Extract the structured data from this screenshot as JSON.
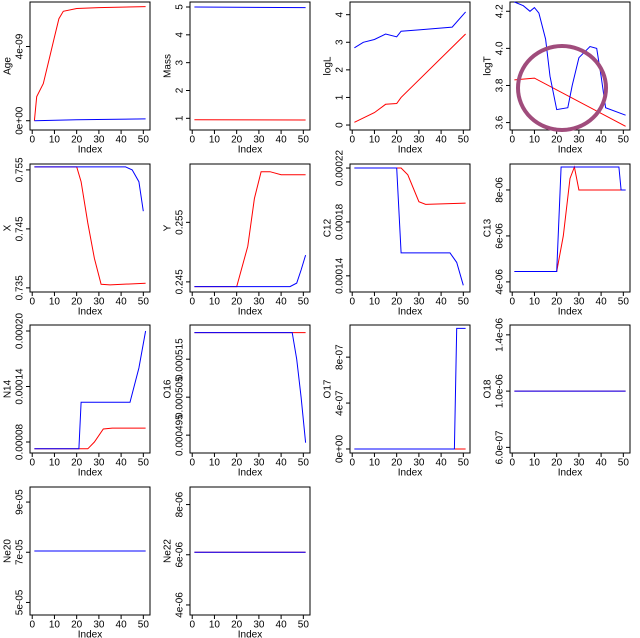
{
  "chart_data": [
    {
      "type": "line",
      "xlabel": "Index",
      "ylabel": "Age",
      "xlim": [
        -1,
        53
      ],
      "xticks": [
        0,
        10,
        20,
        30,
        40,
        50
      ],
      "ylim": [
        -5e-10,
        6.4e-09
      ],
      "yticks": [
        {
          "value": 0,
          "label": "0e+00"
        },
        {
          "value": 4e-09,
          "label": "4e-09"
        }
      ],
      "series": [
        {
          "color": "#ff0000",
          "x": [
            1,
            2,
            5,
            8,
            10,
            12,
            14,
            20,
            30,
            51
          ],
          "values": [
            0,
            1.3e-09,
            2e-09,
            3.5e-09,
            4.5e-09,
            5.5e-09,
            5.9e-09,
            6.05e-09,
            6.1e-09,
            6.15e-09
          ]
        },
        {
          "color": "#0000ff",
          "x": [
            1,
            20,
            51
          ],
          "values": [
            0,
            5e-11,
            1e-10
          ]
        }
      ]
    },
    {
      "type": "line",
      "xlabel": "Index",
      "ylabel": "Mass",
      "xlim": [
        -1,
        53
      ],
      "xticks": [
        0,
        10,
        20,
        30,
        40,
        50
      ],
      "ylim": [
        0.58,
        5.18
      ],
      "yticks": [
        1,
        2,
        3,
        4,
        5
      ],
      "series": [
        {
          "color": "#ff0000",
          "x": [
            1,
            51
          ],
          "values": [
            0.95,
            0.94
          ]
        },
        {
          "color": "#0000ff",
          "x": [
            1,
            51
          ],
          "values": [
            5.0,
            4.98
          ]
        }
      ]
    },
    {
      "type": "line",
      "xlabel": "Index",
      "ylabel": "logL",
      "xlim": [
        -1,
        53
      ],
      "xticks": [
        0,
        10,
        20,
        30,
        40,
        50
      ],
      "ylim": [
        -0.18,
        4.46
      ],
      "yticks": [
        0,
        1,
        2,
        3,
        4
      ],
      "series": [
        {
          "color": "#ff0000",
          "x": [
            1,
            10,
            15,
            20,
            22,
            51
          ],
          "values": [
            0.1,
            0.45,
            0.75,
            0.78,
            1.0,
            3.3
          ]
        },
        {
          "color": "#0000ff",
          "x": [
            1,
            5,
            10,
            15,
            20,
            22,
            30,
            45,
            51
          ],
          "values": [
            2.8,
            3.0,
            3.1,
            3.3,
            3.2,
            3.4,
            3.45,
            3.55,
            4.1
          ]
        }
      ]
    },
    {
      "type": "line",
      "xlabel": "Index",
      "ylabel": "logT",
      "xlim": [
        -1,
        53
      ],
      "xticks": [
        0,
        10,
        20,
        30,
        40,
        50
      ],
      "ylim": [
        3.56,
        4.25
      ],
      "yticks": [
        3.6,
        3.8,
        {
          "value": 4,
          "label": "4.0"
        },
        4.2
      ],
      "series": [
        {
          "color": "#ff0000",
          "x": [
            1,
            10,
            51
          ],
          "values": [
            3.83,
            3.84,
            3.58
          ]
        },
        {
          "color": "#0000ff",
          "x": [
            1,
            5,
            8,
            10,
            12,
            15,
            17,
            20,
            25,
            27,
            30,
            35,
            38,
            40,
            42,
            51
          ],
          "values": [
            4.25,
            4.23,
            4.2,
            4.22,
            4.19,
            4.05,
            3.85,
            3.67,
            3.68,
            3.8,
            3.95,
            4.01,
            4.0,
            3.85,
            3.68,
            3.64
          ]
        }
      ]
    },
    {
      "type": "line",
      "xlabel": "Index",
      "ylabel": "X",
      "xlim": [
        -1,
        53
      ],
      "xticks": [
        0,
        10,
        20,
        30,
        40,
        50
      ],
      "ylim": [
        0.7343,
        0.756
      ],
      "yticks": [
        0.735,
        0.745,
        0.755
      ],
      "series": [
        {
          "color": "#ff0000",
          "x": [
            1,
            20,
            22,
            25,
            28,
            31,
            35,
            51
          ],
          "values": [
            0.7555,
            0.7555,
            0.753,
            0.746,
            0.74,
            0.7356,
            0.7355,
            0.7358
          ]
        },
        {
          "color": "#0000ff",
          "x": [
            1,
            42,
            45,
            48,
            50
          ],
          "values": [
            0.7555,
            0.7555,
            0.755,
            0.753,
            0.748
          ]
        }
      ]
    },
    {
      "type": "line",
      "xlabel": "Index",
      "ylabel": "Y",
      "xlim": [
        -1,
        53
      ],
      "xticks": [
        0,
        10,
        20,
        30,
        40,
        50
      ],
      "ylim": [
        0.2433,
        0.2648
      ],
      "yticks": [
        0.245,
        0.255
      ],
      "series": [
        {
          "color": "#ff0000",
          "x": [
            1,
            20,
            25,
            28,
            31,
            35,
            40,
            51
          ],
          "values": [
            0.2442,
            0.2442,
            0.251,
            0.259,
            0.2635,
            0.2635,
            0.263,
            0.263
          ]
        },
        {
          "color": "#0000ff",
          "x": [
            1,
            44,
            47,
            49,
            51
          ],
          "values": [
            0.2442,
            0.2442,
            0.2448,
            0.247,
            0.2495
          ]
        }
      ]
    },
    {
      "type": "line",
      "xlabel": "Index",
      "ylabel": "C12",
      "xlim": [
        -1,
        53
      ],
      "xticks": [
        0,
        10,
        20,
        30,
        40,
        50
      ],
      "ylim": [
        0.000128,
        0.000223
      ],
      "yticks": [
        0.00014,
        0.00018,
        0.00022
      ],
      "series": [
        {
          "color": "#ff0000",
          "x": [
            1,
            22,
            25,
            30,
            33,
            51
          ],
          "values": [
            0.00022,
            0.00022,
            0.000215,
            0.000195,
            0.000193,
            0.000194
          ]
        },
        {
          "color": "#0000ff",
          "x": [
            1,
            20,
            22,
            44,
            47,
            50
          ],
          "values": [
            0.00022,
            0.00022,
            0.000157,
            0.000157,
            0.00015,
            0.000133
          ]
        }
      ]
    },
    {
      "type": "line",
      "xlabel": "Index",
      "ylabel": "C13",
      "xlim": [
        -1,
        53
      ],
      "xticks": [
        0,
        10,
        20,
        30,
        40,
        50
      ],
      "ylim": [
        3.56e-06,
        9.13e-06
      ],
      "yticks": [
        {
          "value": 4e-06,
          "label": "4e-06"
        },
        {
          "value": 6e-06,
          "label": "6e-06"
        },
        {
          "value": 8e-06,
          "label": "8e-06"
        }
      ],
      "series": [
        {
          "color": "#ff0000",
          "x": [
            1,
            20,
            23,
            26,
            28,
            30,
            51
          ],
          "values": [
            4.45e-06,
            4.45e-06,
            6e-06,
            8.5e-06,
            9e-06,
            8e-06,
            8e-06
          ]
        },
        {
          "color": "#0000ff",
          "x": [
            1,
            20,
            22,
            48,
            49,
            51
          ],
          "values": [
            4.45e-06,
            4.45e-06,
            9e-06,
            9e-06,
            8e-06,
            8e-06
          ]
        }
      ]
    },
    {
      "type": "line",
      "xlabel": "Index",
      "ylabel": "N14",
      "xlim": [
        -1,
        53
      ],
      "xticks": [
        0,
        10,
        20,
        30,
        40,
        50
      ],
      "ylim": [
        6.81e-05,
        0.0002065
      ],
      "yticks": [
        8e-05,
        0.00014,
        {
          "value": 0.0002,
          "label": "0.00020"
        }
      ],
      "series": [
        {
          "color": "#ff0000",
          "x": [
            1,
            25,
            28,
            32,
            36,
            51
          ],
          "values": [
            7.26e-05,
            7.26e-05,
            8e-05,
            9.4e-05,
            9.5e-05,
            9.5e-05
          ]
        },
        {
          "color": "#0000ff",
          "x": [
            1,
            21,
            22,
            44,
            48,
            51
          ],
          "values": [
            7.26e-05,
            7.26e-05,
            0.000123,
            0.000123,
            0.00016,
            0.0002
          ]
        }
      ]
    },
    {
      "type": "line",
      "xlabel": "Index",
      "ylabel": "O16",
      "xlim": [
        -1,
        53
      ],
      "xticks": [
        0,
        10,
        20,
        30,
        40,
        50
      ],
      "ylim": [
        0.0004903,
        0.000524
      ],
      "yticks": [
        0.000495,
        0.000505,
        0.000515
      ],
      "series": [
        {
          "color": "#ff0000",
          "x": [
            1,
            51
          ],
          "values": [
            0.000522,
            0.000522
          ]
        },
        {
          "color": "#0000ff",
          "x": [
            1,
            45,
            47,
            49,
            51
          ],
          "values": [
            0.000522,
            0.000522,
            0.000515,
            0.000505,
            0.000493
          ]
        }
      ]
    },
    {
      "type": "line",
      "xlabel": "Index",
      "ylabel": "O17",
      "xlim": [
        -1,
        53
      ],
      "xticks": [
        0,
        10,
        20,
        30,
        40,
        50
      ],
      "ylim": [
        -3.5e-08,
        1.08e-06
      ],
      "yticks": [
        {
          "value": 0,
          "label": "0e+00"
        },
        {
          "value": 4e-07,
          "label": "4e-07"
        },
        {
          "value": 8e-07,
          "label": "8e-07"
        }
      ],
      "series": [
        {
          "color": "#ff0000",
          "x": [
            1,
            51
          ],
          "values": [
            0,
            0
          ]
        },
        {
          "color": "#0000ff",
          "x": [
            1,
            46,
            47,
            51
          ],
          "values": [
            0,
            0,
            1.05e-06,
            1.05e-06
          ]
        }
      ]
    },
    {
      "type": "line",
      "xlabel": "Index",
      "ylabel": "O18",
      "xlim": [
        -1,
        53
      ],
      "xticks": [
        0,
        10,
        20,
        30,
        40,
        50
      ],
      "ylim": [
        5.6e-07,
        1.47e-06
      ],
      "yticks": [
        {
          "value": 6e-07,
          "label": "6.0e-07"
        },
        {
          "value": 1e-06,
          "label": "1.0e-06"
        },
        {
          "value": 1.4e-06,
          "label": "1.4e-06"
        }
      ],
      "series": [
        {
          "color": "#ff0000",
          "x": [
            1,
            51
          ],
          "values": [
            1e-06,
            1e-06
          ]
        },
        {
          "color": "#0000ff",
          "x": [
            1,
            51
          ],
          "values": [
            1e-06,
            1e-06
          ]
        }
      ]
    },
    {
      "type": "line",
      "xlabel": "Index",
      "ylabel": "Ne20",
      "xlim": [
        -1,
        53
      ],
      "xticks": [
        0,
        10,
        20,
        30,
        40,
        50
      ],
      "ylim": [
        4.5e-05,
        9.6e-05
      ],
      "yticks": [
        {
          "value": 5e-05,
          "label": "5e-05"
        },
        {
          "value": 7e-05,
          "label": "7e-05"
        },
        {
          "value": 9e-05,
          "label": "9e-05"
        }
      ],
      "series": [
        {
          "color": "#ff0000",
          "x": [
            1,
            51
          ],
          "values": [
            7.05e-05,
            7.05e-05
          ]
        },
        {
          "color": "#0000ff",
          "x": [
            1,
            51
          ],
          "values": [
            7.05e-05,
            7.05e-05
          ]
        }
      ]
    },
    {
      "type": "line",
      "xlabel": "Index",
      "ylabel": "Ne22",
      "xlim": [
        -1,
        53
      ],
      "xticks": [
        0,
        10,
        20,
        30,
        40,
        50
      ],
      "ylim": [
        3.6e-06,
        8.7e-06
      ],
      "yticks": [
        {
          "value": 4e-06,
          "label": "4e-06"
        },
        {
          "value": 6e-06,
          "label": "6e-06"
        },
        {
          "value": 8e-06,
          "label": "8e-06"
        }
      ],
      "series": [
        {
          "color": "#ff0000",
          "x": [
            1,
            51
          ],
          "values": [
            6.1e-06,
            6.1e-06
          ]
        },
        {
          "color": "#0000ff",
          "x": [
            1,
            51
          ],
          "values": [
            6.1e-06,
            6.1e-06
          ]
        }
      ]
    }
  ]
}
